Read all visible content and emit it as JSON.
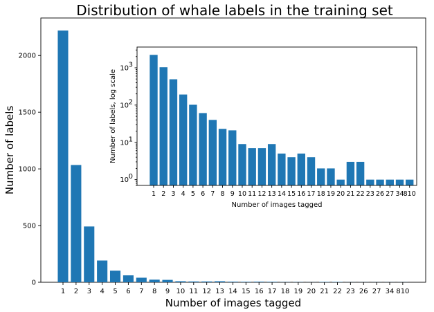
{
  "chart_data": [
    {
      "type": "bar",
      "title": "Distribution of whale labels in the training set",
      "xlabel": "Number of images tagged",
      "ylabel": "Number of labels",
      "categories": [
        "1",
        "2",
        "3",
        "4",
        "5",
        "6",
        "7",
        "8",
        "9",
        "10",
        "11",
        "12",
        "13",
        "14",
        "15",
        "16",
        "17",
        "18",
        "19",
        "20",
        "21",
        "22",
        "23",
        "26",
        "27",
        "34",
        "810"
      ],
      "values": [
        2220,
        1034,
        492,
        192,
        102,
        61,
        40,
        23,
        21,
        9,
        7,
        7,
        9,
        5,
        4,
        5,
        4,
        2,
        2,
        1,
        3,
        3,
        1,
        1,
        1,
        1,
        1
      ],
      "yticks": [
        0,
        500,
        1000,
        1500,
        2000
      ],
      "ylim": [
        0,
        2331
      ],
      "color": "#1f77b4",
      "grid": false
    },
    {
      "type": "bar",
      "title": "",
      "xlabel": "Number of images tagged",
      "ylabel": "Number of labels, log scale",
      "categories": [
        "1",
        "2",
        "3",
        "4",
        "5",
        "6",
        "7",
        "8",
        "9",
        "10",
        "11",
        "12",
        "13",
        "14",
        "15",
        "16",
        "17",
        "18",
        "19",
        "20",
        "21",
        "22",
        "23",
        "26",
        "27",
        "34",
        "810"
      ],
      "values": [
        2220,
        1034,
        492,
        192,
        102,
        61,
        40,
        23,
        21,
        9,
        7,
        7,
        9,
        5,
        4,
        5,
        4,
        2,
        2,
        1,
        3,
        3,
        1,
        1,
        1,
        1,
        1
      ],
      "yscale": "log",
      "yticks": [
        1,
        10,
        100,
        1000
      ],
      "ytick_labels": [
        {
          "base": "10",
          "exp": "0"
        },
        {
          "base": "10",
          "exp": "1"
        },
        {
          "base": "10",
          "exp": "2"
        },
        {
          "base": "10",
          "exp": "3"
        }
      ],
      "ylim": [
        0.7,
        3600
      ],
      "color": "#1f77b4",
      "grid": false,
      "placement": "inset-upper-right"
    }
  ]
}
